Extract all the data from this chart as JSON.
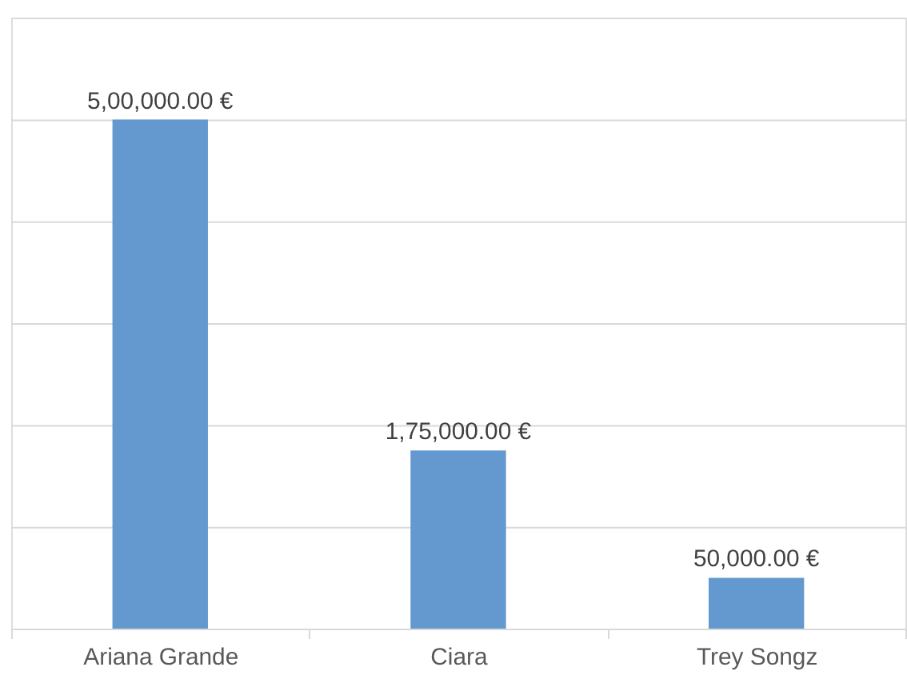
{
  "chart_data": {
    "type": "bar",
    "categories": [
      "Ariana Grande",
      "Ciara",
      "Trey Songz"
    ],
    "values": [
      500000,
      175000,
      50000
    ],
    "value_labels": [
      "5,00,000.00 €",
      "1,75,000.00 €",
      "50,000.00 €"
    ],
    "color": "#6399cf",
    "ylim": [
      0,
      600000
    ],
    "yticks": [
      {
        "value": 0,
        "label": null
      },
      {
        "value": 100000,
        "label": null
      },
      {
        "value": 200000,
        "label": null
      },
      {
        "value": 300000,
        "label": null
      },
      {
        "value": 400000,
        "label": null
      },
      {
        "value": 500000,
        "label": null
      },
      {
        "value": 600000,
        "label": null
      }
    ],
    "tick_labels": "x",
    "grid": "y"
  }
}
